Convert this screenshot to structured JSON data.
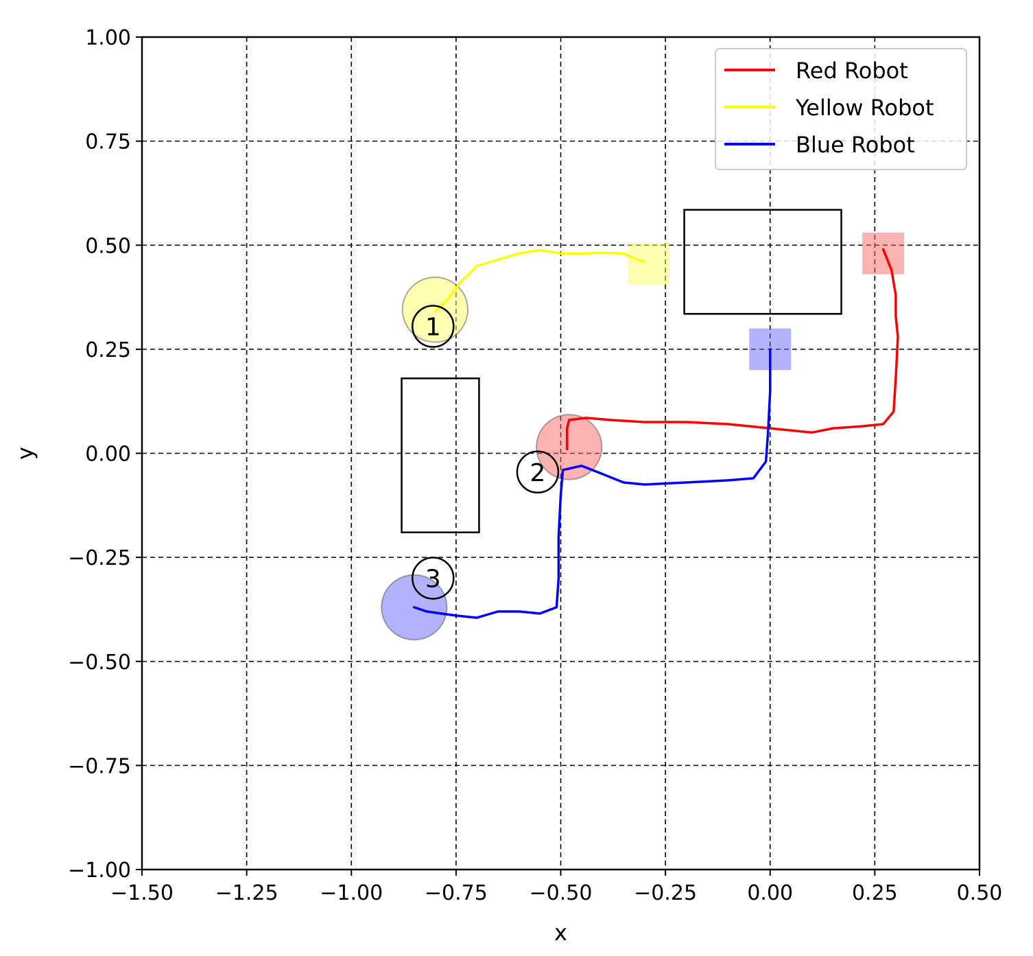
{
  "chart_data": {
    "type": "line",
    "title": "",
    "xlabel": "x",
    "ylabel": "y",
    "xlim": [
      -1.5,
      0.5
    ],
    "ylim": [
      -1.0,
      1.0
    ],
    "grid": true,
    "grid_style": "dashed",
    "legend_position": "top-right",
    "xticks": [
      {
        "value": -1.5,
        "label": "−1.50"
      },
      {
        "value": -1.25,
        "label": "−1.25"
      },
      {
        "value": -1.0,
        "label": "−1.00"
      },
      {
        "value": -0.75,
        "label": "−0.75"
      },
      {
        "value": -0.5,
        "label": "−0.50"
      },
      {
        "value": -0.25,
        "label": "−0.25"
      },
      {
        "value": 0.0,
        "label": "0.00"
      },
      {
        "value": 0.25,
        "label": "0.25"
      },
      {
        "value": 0.5,
        "label": "0.50"
      }
    ],
    "yticks": [
      {
        "value": -1.0,
        "label": "−1.00"
      },
      {
        "value": -0.75,
        "label": "−0.75"
      },
      {
        "value": -0.5,
        "label": "−0.50"
      },
      {
        "value": -0.25,
        "label": "−0.25"
      },
      {
        "value": 0.0,
        "label": "0.00"
      },
      {
        "value": 0.25,
        "label": "0.25"
      },
      {
        "value": 0.5,
        "label": "0.50"
      },
      {
        "value": 0.75,
        "label": "0.75"
      },
      {
        "value": 1.0,
        "label": "1.00"
      }
    ],
    "series": [
      {
        "name": "Red Robot",
        "color": "#ff0000",
        "points": [
          [
            -0.485,
            0.01
          ],
          [
            -0.485,
            0.06
          ],
          [
            -0.48,
            0.08
          ],
          [
            -0.44,
            0.085
          ],
          [
            -0.38,
            0.08
          ],
          [
            -0.3,
            0.075
          ],
          [
            -0.2,
            0.075
          ],
          [
            -0.1,
            0.07
          ],
          [
            0.0,
            0.06
          ],
          [
            0.1,
            0.05
          ],
          [
            0.15,
            0.06
          ],
          [
            0.22,
            0.065
          ],
          [
            0.27,
            0.07
          ],
          [
            0.295,
            0.1
          ],
          [
            0.3,
            0.18
          ],
          [
            0.305,
            0.28
          ],
          [
            0.3,
            0.33
          ],
          [
            0.3,
            0.38
          ],
          [
            0.29,
            0.44
          ],
          [
            0.27,
            0.49
          ]
        ]
      },
      {
        "name": "Yellow Robot",
        "color": "#ffff00",
        "points": [
          [
            -0.8,
            0.34
          ],
          [
            -0.77,
            0.37
          ],
          [
            -0.74,
            0.41
          ],
          [
            -0.7,
            0.45
          ],
          [
            -0.65,
            0.465
          ],
          [
            -0.6,
            0.48
          ],
          [
            -0.55,
            0.488
          ],
          [
            -0.5,
            0.48
          ],
          [
            -0.45,
            0.48
          ],
          [
            -0.4,
            0.482
          ],
          [
            -0.35,
            0.48
          ],
          [
            -0.33,
            0.47
          ],
          [
            -0.3,
            0.46
          ]
        ]
      },
      {
        "name": "Blue Robot",
        "color": "#0000ff",
        "points": [
          [
            -0.85,
            -0.37
          ],
          [
            -0.82,
            -0.38
          ],
          [
            -0.75,
            -0.39
          ],
          [
            -0.7,
            -0.395
          ],
          [
            -0.65,
            -0.38
          ],
          [
            -0.6,
            -0.38
          ],
          [
            -0.55,
            -0.385
          ],
          [
            -0.51,
            -0.37
          ],
          [
            -0.505,
            -0.3
          ],
          [
            -0.505,
            -0.2
          ],
          [
            -0.5,
            -0.1
          ],
          [
            -0.495,
            -0.04
          ],
          [
            -0.45,
            -0.03
          ],
          [
            -0.4,
            -0.05
          ],
          [
            -0.35,
            -0.07
          ],
          [
            -0.3,
            -0.075
          ],
          [
            -0.2,
            -0.07
          ],
          [
            -0.1,
            -0.065
          ],
          [
            -0.04,
            -0.06
          ],
          [
            -0.01,
            -0.02
          ],
          [
            -0.005,
            0.05
          ],
          [
            0.0,
            0.15
          ],
          [
            0.0,
            0.25
          ]
        ]
      }
    ],
    "obstacles": [
      {
        "x0": -0.88,
        "x1": -0.695,
        "y0": -0.19,
        "y1": 0.18
      },
      {
        "x0": -0.205,
        "x1": 0.17,
        "y0": 0.335,
        "y1": 0.585
      }
    ],
    "start_circles": [
      {
        "x": -0.8,
        "y": 0.345,
        "r": 0.078,
        "color": "#ffff66"
      },
      {
        "x": -0.48,
        "y": 0.015,
        "r": 0.078,
        "color": "#ff6666"
      },
      {
        "x": -0.85,
        "y": -0.37,
        "r": 0.078,
        "color": "#6666ff"
      }
    ],
    "goal_squares": [
      {
        "x": 0.27,
        "y": 0.48,
        "half": 0.05,
        "color": "#ff6666"
      },
      {
        "x": -0.29,
        "y": 0.455,
        "half": 0.05,
        "color": "#ffff66"
      },
      {
        "x": 0.0,
        "y": 0.25,
        "half": 0.05,
        "color": "#6666ff"
      }
    ],
    "numbered_markers": [
      {
        "label": "1",
        "x": -0.805,
        "y": 0.305
      },
      {
        "label": "2",
        "x": -0.555,
        "y": -0.045
      },
      {
        "label": "3",
        "x": -0.805,
        "y": -0.3
      }
    ]
  }
}
